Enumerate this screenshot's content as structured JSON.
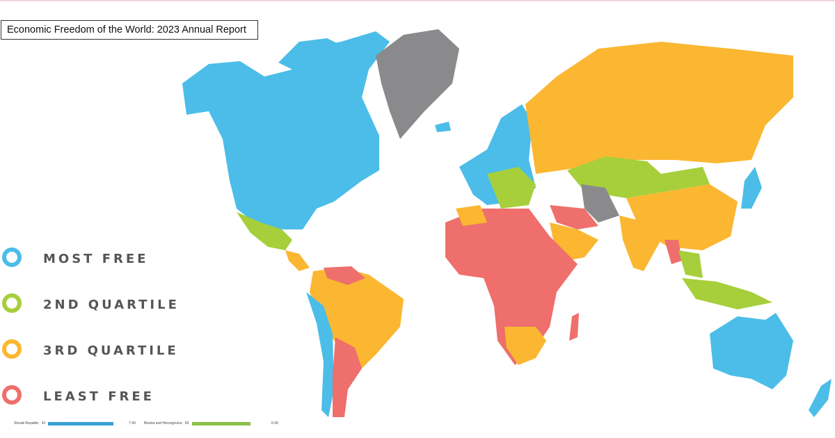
{
  "title": "Economic Freedom of the World: 2023 Annual Report",
  "colors": {
    "most_free": "#4bbde8",
    "second_quartile": "#a6cf3b",
    "third_quartile": "#fbb731",
    "least_free": "#ee6f6c",
    "no_data": "#8a8a8c"
  },
  "legend": [
    {
      "label": "MOST FREE",
      "color": "#4bbde8"
    },
    {
      "label": "2ND QUARTILE",
      "color": "#a6cf3b"
    },
    {
      "label": "3RD QUARTILE",
      "color": "#fbb731"
    },
    {
      "label": "LEAST FREE",
      "color": "#ee6f6c"
    }
  ],
  "bottom_rows": [
    {
      "country": "Slovak Republic",
      "rank": "41",
      "score": "7.49",
      "color": "#3a9fd4"
    },
    {
      "country": "Bosnia and Herzegovina",
      "rank": "82",
      "score": "6.99",
      "color": "#8cc04a"
    }
  ]
}
